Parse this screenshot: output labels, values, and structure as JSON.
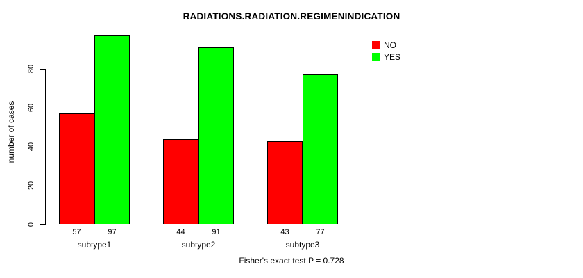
{
  "chart_data": {
    "type": "bar",
    "title": "RADIATIONS.RADIATION.REGIMENINDICATION",
    "categories": [
      "subtype1",
      "subtype2",
      "subtype3"
    ],
    "series": [
      {
        "name": "NO",
        "color": "#ff0000",
        "values": [
          57,
          44,
          43
        ]
      },
      {
        "name": "YES",
        "color": "#00ff00",
        "values": [
          97,
          91,
          77
        ]
      }
    ],
    "xlabel": "",
    "ylabel": "number of cases",
    "ylim": [
      0,
      100
    ],
    "yticks": [
      0,
      20,
      40,
      60,
      80
    ],
    "grid": false,
    "legend_position": "top-right",
    "annotation": "Fisher's exact test P = 0.728"
  }
}
